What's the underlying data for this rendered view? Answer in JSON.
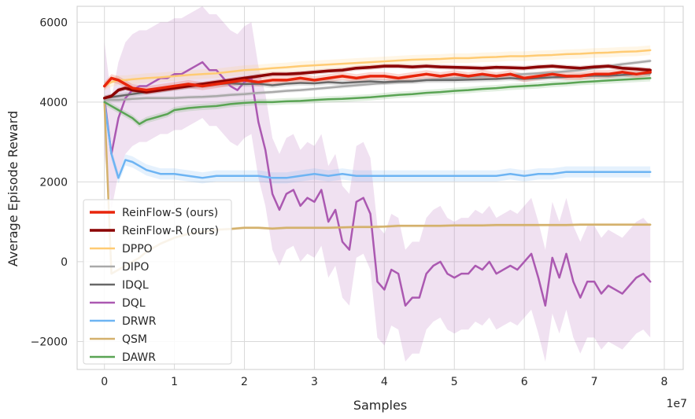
{
  "chart_data": {
    "type": "line",
    "xlabel": "Samples",
    "ylabel": "Average Episode Reward",
    "x_offset_label": "1e7",
    "xlim": [
      -3900000,
      82700000
    ],
    "ylim": [
      -2700,
      6400
    ],
    "xticks": [
      0,
      10000000,
      20000000,
      30000000,
      40000000,
      50000000,
      60000000,
      70000000,
      80000000
    ],
    "xtick_labels": [
      "0",
      "1",
      "2",
      "3",
      "4",
      "5",
      "6",
      "7",
      "8"
    ],
    "yticks": [
      -2000,
      0,
      2000,
      4000,
      6000
    ],
    "ytick_labels": [
      "−2000",
      "0",
      "2000",
      "4000",
      "6000"
    ],
    "grid": true,
    "legend_position": "lower-left",
    "series": [
      {
        "name": "DQL",
        "color": "#ab59b1",
        "width": 2.5,
        "x": [
          0,
          1,
          2,
          3,
          4,
          5,
          6,
          7,
          8,
          9,
          10,
          11,
          12,
          13,
          14,
          15,
          16,
          17,
          18,
          19,
          20,
          21,
          22,
          23,
          24,
          25,
          26,
          27,
          28,
          29,
          30,
          31,
          32,
          33,
          34,
          35,
          36,
          37,
          38,
          39,
          40,
          41,
          42,
          43,
          44,
          45,
          46,
          47,
          48,
          49,
          50,
          51,
          52,
          53,
          54,
          55,
          56,
          57,
          58,
          59,
          60,
          61,
          62,
          63,
          64,
          65,
          66,
          67,
          68,
          69,
          70,
          71,
          72,
          73,
          74,
          75,
          76,
          77,
          78
        ],
        "y": [
          4100,
          2700,
          3600,
          4100,
          4300,
          4400,
          4400,
          4500,
          4600,
          4600,
          4700,
          4700,
          4800,
          4900,
          5000,
          4800,
          4800,
          4600,
          4400,
          4300,
          4500,
          4600,
          3500,
          2800,
          1700,
          1300,
          1700,
          1800,
          1400,
          1600,
          1500,
          1800,
          1000,
          1300,
          500,
          300,
          1500,
          1600,
          1200,
          -500,
          -700,
          -200,
          -300,
          -1100,
          -900,
          -900,
          -300,
          -100,
          0,
          -300,
          -400,
          -300,
          -300,
          -100,
          -200,
          0,
          -300,
          -200,
          -100,
          -200,
          0,
          200,
          -400,
          -1100,
          100,
          -400,
          200,
          -500,
          -900,
          -500,
          -500,
          -800,
          -600,
          -700,
          -800,
          -600,
          -400,
          -300,
          -500
        ],
        "band": 1400
      },
      {
        "name": "DRWR",
        "color": "#6db4f3",
        "width": 2.5,
        "x": [
          0,
          1,
          2,
          3,
          4,
          5,
          6,
          7,
          8,
          9,
          10,
          12,
          14,
          16,
          18,
          20,
          22,
          24,
          26,
          28,
          30,
          32,
          34,
          36,
          38,
          40,
          42,
          44,
          46,
          48,
          50,
          52,
          54,
          56,
          58,
          60,
          62,
          64,
          66,
          68,
          70,
          72,
          74,
          76,
          78
        ],
        "y": [
          4000,
          2700,
          2100,
          2550,
          2500,
          2400,
          2300,
          2250,
          2200,
          2200,
          2200,
          2150,
          2100,
          2150,
          2150,
          2150,
          2150,
          2100,
          2100,
          2150,
          2200,
          2150,
          2200,
          2150,
          2150,
          2150,
          2150,
          2150,
          2150,
          2150,
          2150,
          2150,
          2150,
          2150,
          2200,
          2150,
          2200,
          2200,
          2250,
          2250,
          2250,
          2250,
          2250,
          2250,
          2250
        ],
        "band": 140
      },
      {
        "name": "QSM",
        "color": "#d4b16c",
        "width": 2.5,
        "x": [
          0,
          1,
          2,
          3,
          4,
          5,
          6,
          7,
          8,
          10,
          12,
          14,
          16,
          18,
          20,
          22,
          24,
          26,
          28,
          30,
          32,
          34,
          36,
          38,
          40,
          42,
          44,
          46,
          48,
          50,
          52,
          54,
          56,
          58,
          60,
          62,
          64,
          66,
          68,
          70,
          72,
          74,
          76,
          78
        ],
        "y": [
          4000,
          -300,
          -200,
          -100,
          0,
          100,
          250,
          350,
          450,
          600,
          700,
          750,
          800,
          820,
          850,
          850,
          830,
          850,
          850,
          850,
          850,
          860,
          870,
          870,
          880,
          900,
          900,
          900,
          900,
          910,
          910,
          910,
          920,
          920,
          920,
          920,
          920,
          920,
          930,
          930,
          930,
          930,
          930,
          930
        ],
        "band": 40
      },
      {
        "name": "DAWR",
        "color": "#5aa454",
        "width": 2.5,
        "x": [
          0,
          1,
          2,
          3,
          4,
          5,
          6,
          7,
          8,
          9,
          10,
          12,
          14,
          16,
          18,
          20,
          22,
          24,
          26,
          28,
          30,
          32,
          34,
          36,
          38,
          40,
          42,
          44,
          46,
          48,
          50,
          52,
          54,
          56,
          58,
          60,
          62,
          64,
          66,
          68,
          70,
          72,
          74,
          76,
          78
        ],
        "y": [
          4000,
          3900,
          3800,
          3700,
          3600,
          3450,
          3550,
          3600,
          3650,
          3700,
          3800,
          3850,
          3880,
          3900,
          3950,
          3980,
          4000,
          4000,
          4020,
          4030,
          4050,
          4070,
          4080,
          4100,
          4120,
          4150,
          4180,
          4200,
          4230,
          4250,
          4280,
          4300,
          4330,
          4350,
          4380,
          4400,
          4420,
          4450,
          4470,
          4500,
          4520,
          4540,
          4560,
          4580,
          4600
        ],
        "band": 80
      },
      {
        "name": "DIPO",
        "color": "#a9a9a9",
        "width": 2.5,
        "x": [
          0,
          2,
          4,
          6,
          8,
          10,
          12,
          14,
          16,
          18,
          20,
          22,
          24,
          26,
          28,
          30,
          32,
          34,
          36,
          38,
          40,
          42,
          44,
          46,
          48,
          50,
          52,
          54,
          56,
          58,
          60,
          62,
          64,
          66,
          68,
          70,
          72,
          74,
          76,
          78
        ],
        "y": [
          4050,
          4050,
          4080,
          4100,
          4100,
          4100,
          4120,
          4130,
          4150,
          4180,
          4200,
          4230,
          4250,
          4280,
          4300,
          4330,
          4360,
          4390,
          4420,
          4450,
          4480,
          4500,
          4520,
          4550,
          4570,
          4600,
          4620,
          4640,
          4660,
          4680,
          4700,
          4720,
          4740,
          4770,
          4800,
          4850,
          4900,
          4950,
          4990,
          5030
        ],
        "band": 50
      },
      {
        "name": "IDQL",
        "color": "#686868",
        "width": 2.5,
        "x": [
          0,
          2,
          4,
          6,
          8,
          10,
          12,
          14,
          16,
          18,
          20,
          22,
          24,
          26,
          28,
          30,
          32,
          34,
          36,
          38,
          40,
          42,
          44,
          46,
          48,
          50,
          52,
          54,
          56,
          58,
          60,
          62,
          64,
          66,
          68,
          70,
          72,
          74,
          76,
          78
        ],
        "y": [
          4100,
          4150,
          4200,
          4250,
          4300,
          4350,
          4400,
          4420,
          4450,
          4470,
          4450,
          4460,
          4420,
          4460,
          4480,
          4470,
          4500,
          4480,
          4500,
          4520,
          4500,
          4520,
          4520,
          4550,
          4550,
          4550,
          4560,
          4570,
          4580,
          4600,
          4580,
          4600,
          4620,
          4630,
          4650,
          4660,
          4660,
          4680,
          4700,
          4720
        ],
        "band": 70
      },
      {
        "name": "DPPO",
        "color": "#ffcb73",
        "width": 2.5,
        "x": [
          0,
          1,
          2,
          3,
          4,
          6,
          8,
          10,
          12,
          14,
          16,
          18,
          20,
          22,
          24,
          26,
          28,
          30,
          32,
          34,
          36,
          38,
          40,
          42,
          44,
          46,
          48,
          50,
          52,
          54,
          56,
          58,
          60,
          62,
          64,
          66,
          68,
          70,
          72,
          74,
          76,
          78
        ],
        "y": [
          4400,
          4500,
          4550,
          4550,
          4570,
          4600,
          4620,
          4650,
          4680,
          4700,
          4720,
          4760,
          4800,
          4820,
          4850,
          4870,
          4900,
          4920,
          4940,
          4960,
          4980,
          5000,
          5020,
          5040,
          5060,
          5070,
          5080,
          5100,
          5100,
          5120,
          5130,
          5150,
          5150,
          5170,
          5180,
          5200,
          5210,
          5230,
          5240,
          5260,
          5270,
          5300
        ],
        "band": 120
      },
      {
        "name": "ReinFlow-R (ours)",
        "color": "#8b0000",
        "width": 3.5,
        "x": [
          0,
          1,
          2,
          3,
          4,
          6,
          8,
          10,
          12,
          14,
          16,
          18,
          20,
          22,
          24,
          26,
          28,
          30,
          32,
          34,
          36,
          38,
          40,
          42,
          44,
          46,
          48,
          50,
          52,
          54,
          56,
          58,
          60,
          62,
          64,
          66,
          68,
          70,
          72,
          74,
          76,
          78
        ],
        "y": [
          4100,
          4150,
          4300,
          4350,
          4300,
          4250,
          4300,
          4350,
          4400,
          4450,
          4500,
          4550,
          4600,
          4650,
          4700,
          4700,
          4720,
          4750,
          4780,
          4800,
          4850,
          4870,
          4900,
          4900,
          4880,
          4900,
          4880,
          4870,
          4860,
          4850,
          4870,
          4860,
          4850,
          4880,
          4900,
          4870,
          4850,
          4880,
          4900,
          4850,
          4830,
          4800
        ],
        "band": 60
      },
      {
        "name": "ReinFlow-S (ours)",
        "color": "#e8250b",
        "width": 3.5,
        "x": [
          0,
          1,
          2,
          3,
          4,
          6,
          8,
          10,
          12,
          14,
          16,
          18,
          20,
          22,
          24,
          26,
          28,
          30,
          32,
          34,
          36,
          38,
          40,
          42,
          44,
          46,
          48,
          50,
          52,
          54,
          56,
          58,
          60,
          62,
          64,
          66,
          68,
          70,
          72,
          74,
          76,
          78
        ],
        "y": [
          4400,
          4600,
          4550,
          4450,
          4350,
          4300,
          4350,
          4400,
          4450,
          4400,
          4450,
          4500,
          4550,
          4500,
          4550,
          4550,
          4600,
          4550,
          4600,
          4650,
          4600,
          4650,
          4650,
          4600,
          4650,
          4700,
          4650,
          4700,
          4650,
          4700,
          4650,
          4700,
          4600,
          4650,
          4700,
          4650,
          4650,
          4700,
          4700,
          4750,
          4700,
          4750
        ],
        "band": 100
      }
    ],
    "legend_order": [
      "ReinFlow-S (ours)",
      "ReinFlow-R (ours)",
      "DPPO",
      "DIPO",
      "IDQL",
      "DQL",
      "DRWR",
      "QSM",
      "DAWR"
    ]
  }
}
